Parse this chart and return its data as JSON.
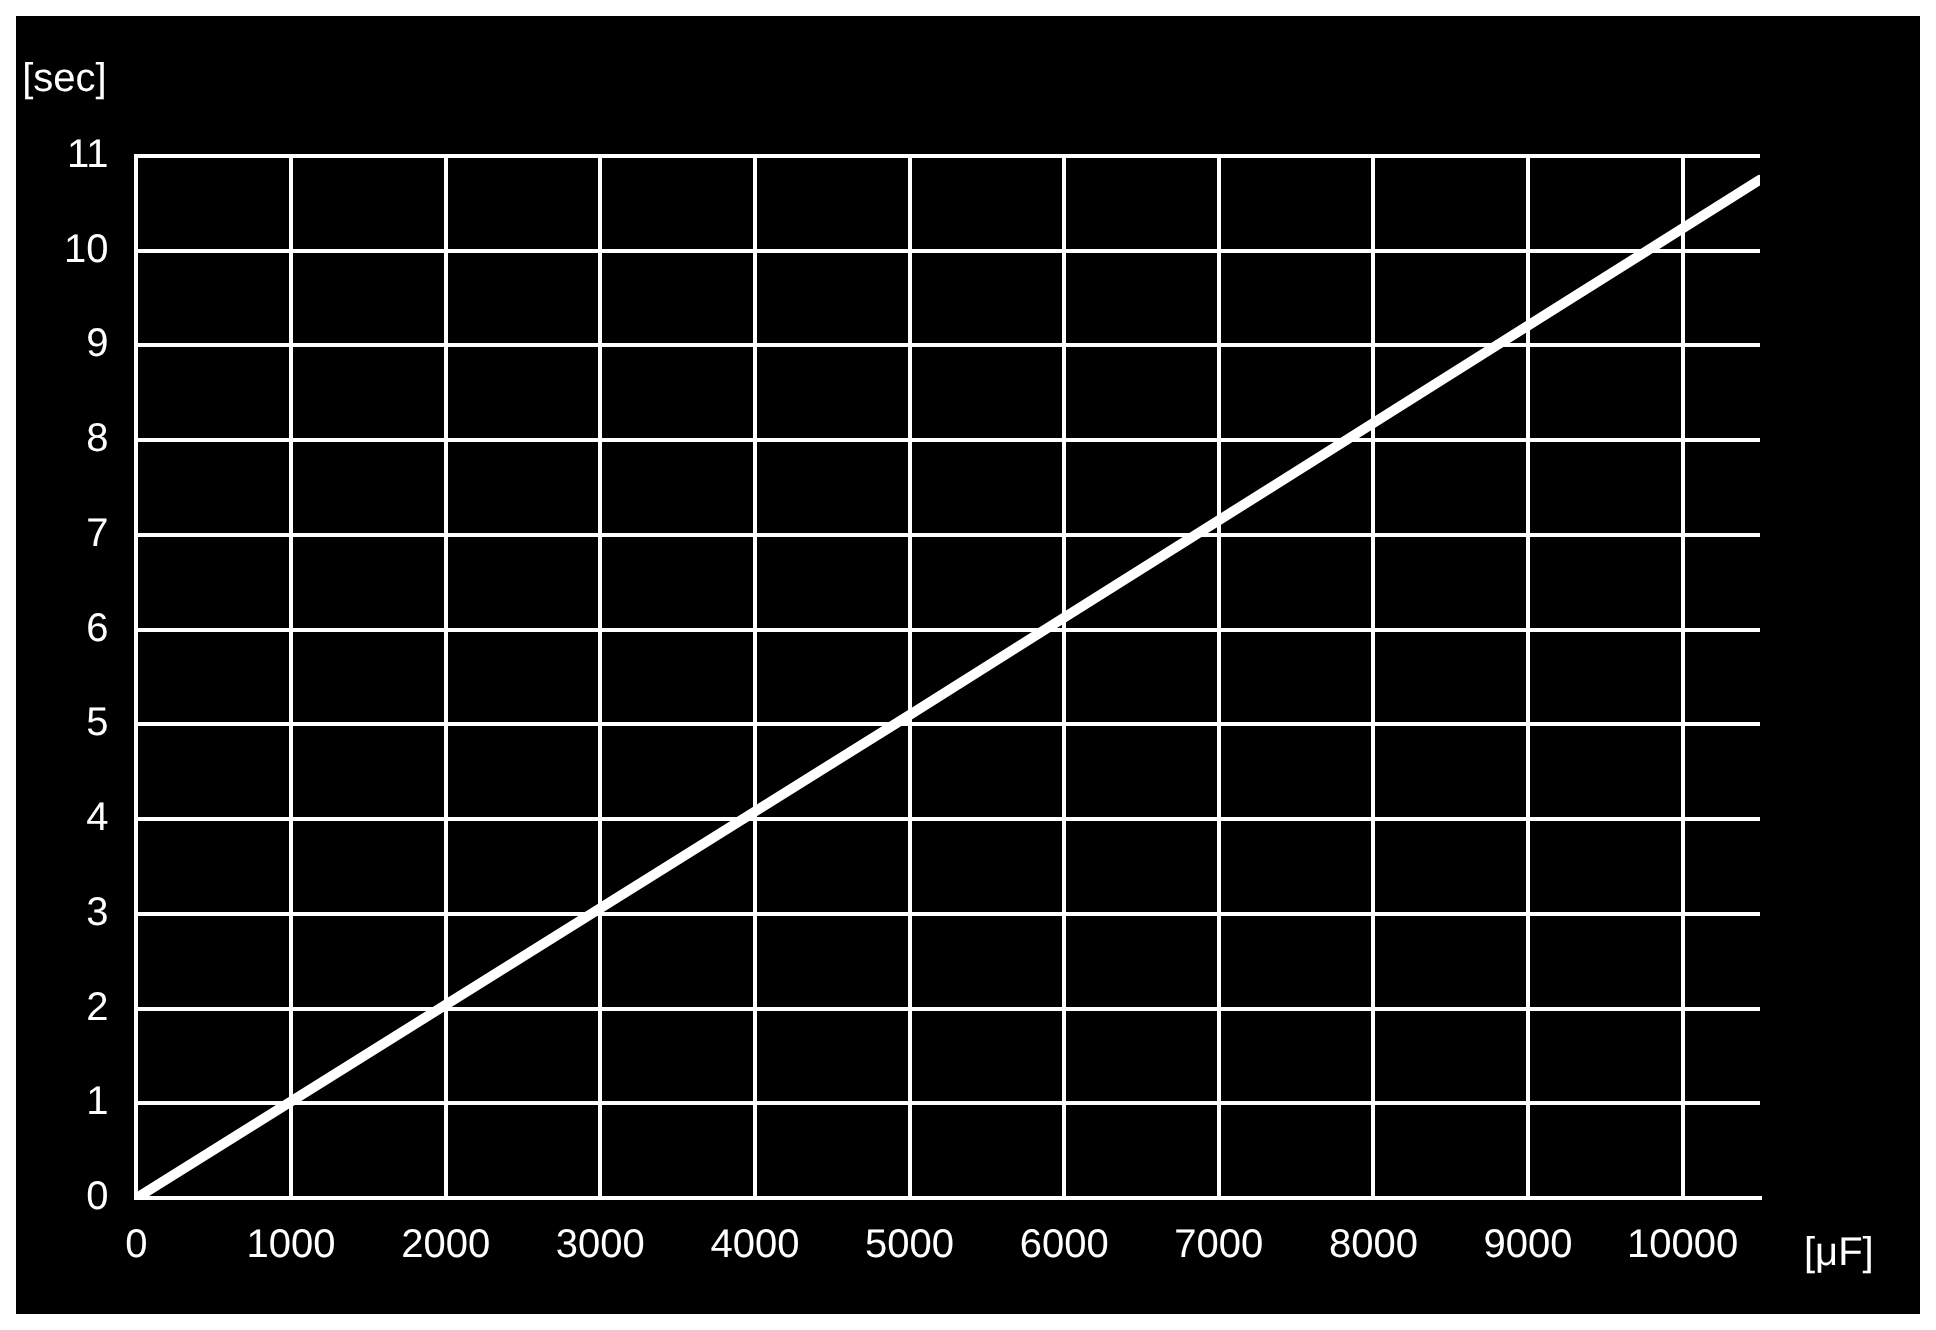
{
  "chart_data": {
    "type": "line",
    "xlabel": "[μF]",
    "ylabel": "[sec]",
    "x": [
      0,
      5000,
      10500
    ],
    "series": [
      {
        "color": "#ffffff",
        "values": [
          0,
          5.1,
          10.75
        ]
      }
    ],
    "xlim": [
      0,
      10500
    ],
    "xticks": [
      0,
      1000,
      2000,
      3000,
      4000,
      5000,
      6000,
      7000,
      8000,
      9000,
      10000
    ],
    "ylim": [
      0,
      11
    ],
    "yticks": [
      0,
      1,
      2,
      3,
      4,
      5,
      6,
      7,
      8,
      9,
      10,
      11
    ],
    "grid": true,
    "legend": false,
    "marker": "none",
    "line_style": "solid"
  }
}
